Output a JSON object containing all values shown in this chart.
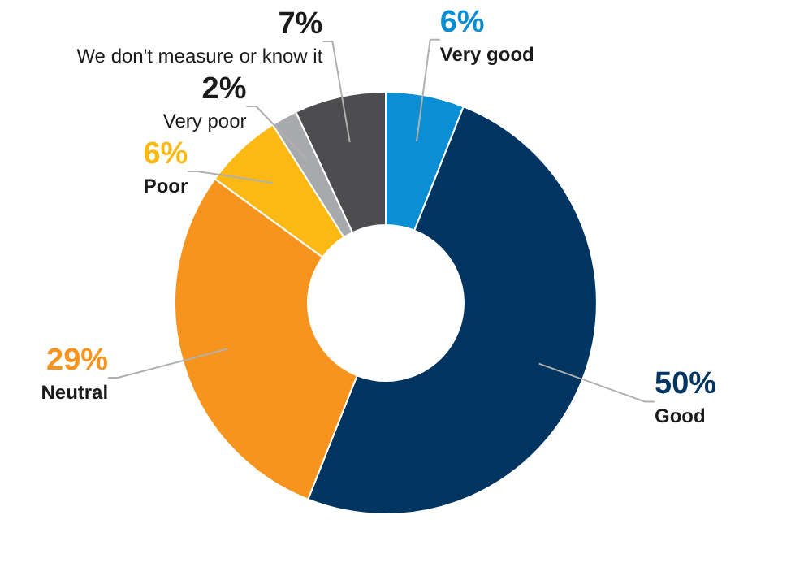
{
  "chart_data": {
    "type": "donut",
    "categories": [
      "Very good",
      "Good",
      "Neutral",
      "Poor",
      "Very poor",
      "We don't measure or know it"
    ],
    "values": [
      6,
      50,
      29,
      6,
      2,
      7
    ],
    "colors": [
      "#0a8fd4",
      "#003461",
      "#f7941d",
      "#fdb913",
      "#a7a9ac",
      "#4d4d4f"
    ],
    "value_labels": [
      "6%",
      "50%",
      "29%",
      "6%",
      "2%",
      "7%"
    ]
  }
}
